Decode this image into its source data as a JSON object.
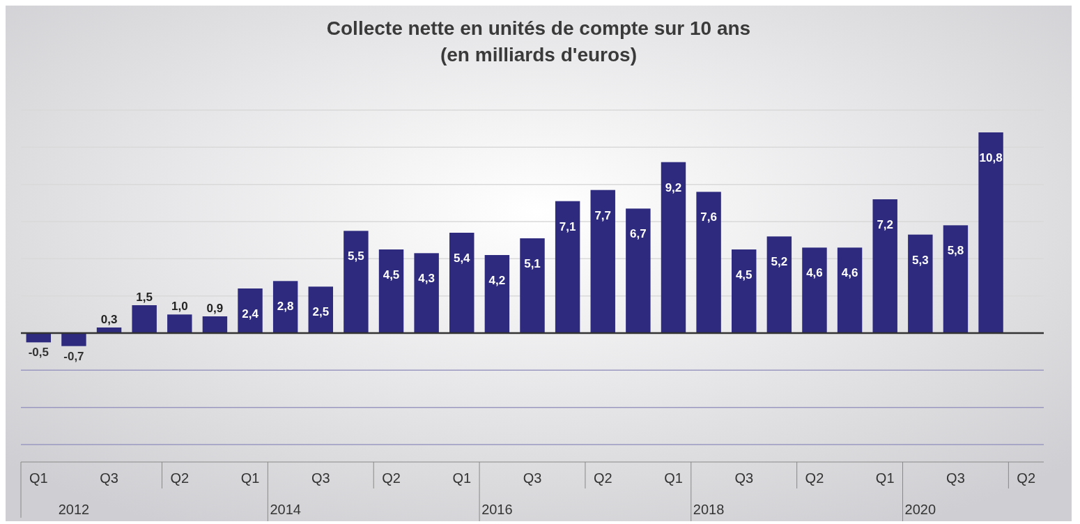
{
  "chart_data": {
    "type": "bar",
    "title": "Collecte nette en unités de compte sur 10 ans\n(en milliards d'euros)",
    "categories": [
      "Q1",
      null,
      "Q3",
      null,
      "Q2",
      null,
      "Q1",
      null,
      "Q3",
      null,
      "Q2",
      null,
      "Q1",
      null,
      "Q3",
      null,
      "Q2",
      null,
      "Q1",
      null,
      "Q3",
      null,
      "Q2",
      null,
      "Q1",
      null,
      "Q3",
      null,
      "Q2"
    ],
    "values": [
      -0.5,
      -0.7,
      0.3,
      1.5,
      1.0,
      0.9,
      2.4,
      2.8,
      2.5,
      5.5,
      4.5,
      4.3,
      5.4,
      4.2,
      5.1,
      7.1,
      7.7,
      6.7,
      9.2,
      7.6,
      4.5,
      5.2,
      4.6,
      4.6,
      7.2,
      5.3,
      5.8,
      10.8,
      null
    ],
    "value_labels": [
      "-0,5",
      "-0,7",
      "0,3",
      "1,5",
      "1,0",
      "0,9",
      "2,4",
      "2,8",
      "2,5",
      "5,5",
      "4,5",
      "4,3",
      "5,4",
      "4,2",
      "5,1",
      "7,1",
      "7,7",
      "6,7",
      "9,2",
      "7,6",
      "4,5",
      "5,2",
      "4,6",
      "4,6",
      "7,2",
      "5,3",
      "5,8",
      "10,8",
      null
    ],
    "color": "#2e2a7e",
    "ylim": [
      -6,
      12
    ],
    "yticks": [
      {
        "value": -6,
        "label": null
      },
      {
        "value": -4,
        "label": null
      },
      {
        "value": -2,
        "label": null
      },
      {
        "value": 0,
        "label": null
      },
      {
        "value": 2,
        "label": null
      },
      {
        "value": 4,
        "label": null
      },
      {
        "value": 6,
        "label": null
      },
      {
        "value": 8,
        "label": null
      },
      {
        "value": 10,
        "label": null
      },
      {
        "value": 12,
        "label": null
      }
    ],
    "grid": "y",
    "tick_labels": "x",
    "annotations": [
      "2012",
      "2014",
      "2016",
      "2018",
      "2020"
    ]
  }
}
